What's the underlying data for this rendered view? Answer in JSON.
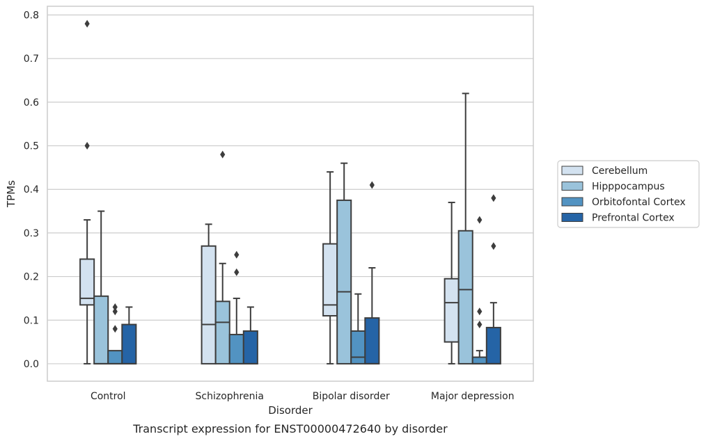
{
  "caption": "Transcript expression for ENST00000472640 by disorder",
  "chart_data": {
    "type": "box",
    "xlabel": "Disorder",
    "ylabel": "TPMs",
    "ylim": [
      -0.04,
      0.82
    ],
    "yticks": [
      0.0,
      0.1,
      0.2,
      0.3,
      0.4,
      0.5,
      0.6,
      0.7,
      0.8
    ],
    "ytick_labels": [
      "0.0",
      "0.1",
      "0.2",
      "0.3",
      "0.4",
      "0.5",
      "0.6",
      "0.7",
      "0.8"
    ],
    "categories": [
      "Control",
      "Schizophrenia",
      "Bipolar disorder",
      "Major depression"
    ],
    "grid": true,
    "legend_position": "right",
    "series": [
      {
        "name": "Cerebellum",
        "color": "#d3e2f0",
        "boxes": [
          {
            "whisker_low": 0.0,
            "q1": 0.135,
            "median": 0.15,
            "q3": 0.24,
            "whisker_high": 0.33,
            "outliers": [
              0.5,
              0.78
            ]
          },
          {
            "whisker_low": 0.0,
            "q1": 0.0,
            "median": 0.09,
            "q3": 0.27,
            "whisker_high": 0.32,
            "outliers": []
          },
          {
            "whisker_low": 0.0,
            "q1": 0.11,
            "median": 0.135,
            "q3": 0.275,
            "whisker_high": 0.44,
            "outliers": []
          },
          {
            "whisker_low": 0.0,
            "q1": 0.05,
            "median": 0.14,
            "q3": 0.195,
            "whisker_high": 0.37,
            "outliers": []
          }
        ]
      },
      {
        "name": "Hipppocampus",
        "color": "#9ac3db",
        "boxes": [
          {
            "whisker_low": 0.0,
            "q1": 0.0,
            "median": 0.0,
            "q3": 0.155,
            "whisker_high": 0.35,
            "outliers": []
          },
          {
            "whisker_low": 0.0,
            "q1": 0.0,
            "median": 0.095,
            "q3": 0.143,
            "whisker_high": 0.23,
            "outliers": [
              0.48
            ]
          },
          {
            "whisker_low": 0.0,
            "q1": 0.0,
            "median": 0.165,
            "q3": 0.375,
            "whisker_high": 0.46,
            "outliers": []
          },
          {
            "whisker_low": 0.0,
            "q1": 0.0,
            "median": 0.17,
            "q3": 0.305,
            "whisker_high": 0.62,
            "outliers": []
          }
        ]
      },
      {
        "name": "Orbitofontal Cortex",
        "color": "#5293c2",
        "boxes": [
          {
            "whisker_low": 0.0,
            "q1": 0.0,
            "median": 0.0,
            "q3": 0.03,
            "whisker_high": 0.03,
            "outliers": [
              0.08,
              0.12,
              0.13
            ]
          },
          {
            "whisker_low": 0.0,
            "q1": 0.0,
            "median": 0.0,
            "q3": 0.067,
            "whisker_high": 0.15,
            "outliers": [
              0.21,
              0.25
            ]
          },
          {
            "whisker_low": 0.0,
            "q1": 0.0,
            "median": 0.015,
            "q3": 0.075,
            "whisker_high": 0.16,
            "outliers": []
          },
          {
            "whisker_low": 0.0,
            "q1": 0.0,
            "median": 0.0,
            "q3": 0.015,
            "whisker_high": 0.03,
            "outliers": [
              0.09,
              0.12,
              0.33
            ]
          }
        ]
      },
      {
        "name": "Prefrontal Cortex",
        "color": "#2564a6",
        "boxes": [
          {
            "whisker_low": 0.0,
            "q1": 0.0,
            "median": 0.0,
            "q3": 0.09,
            "whisker_high": 0.13,
            "outliers": []
          },
          {
            "whisker_low": 0.0,
            "q1": 0.0,
            "median": 0.0,
            "q3": 0.075,
            "whisker_high": 0.13,
            "outliers": []
          },
          {
            "whisker_low": 0.0,
            "q1": 0.0,
            "median": 0.0,
            "q3": 0.105,
            "whisker_high": 0.22,
            "outliers": [
              0.41
            ]
          },
          {
            "whisker_low": 0.0,
            "q1": 0.0,
            "median": 0.0,
            "q3": 0.083,
            "whisker_high": 0.14,
            "outliers": [
              0.27,
              0.38
            ]
          }
        ]
      }
    ]
  }
}
